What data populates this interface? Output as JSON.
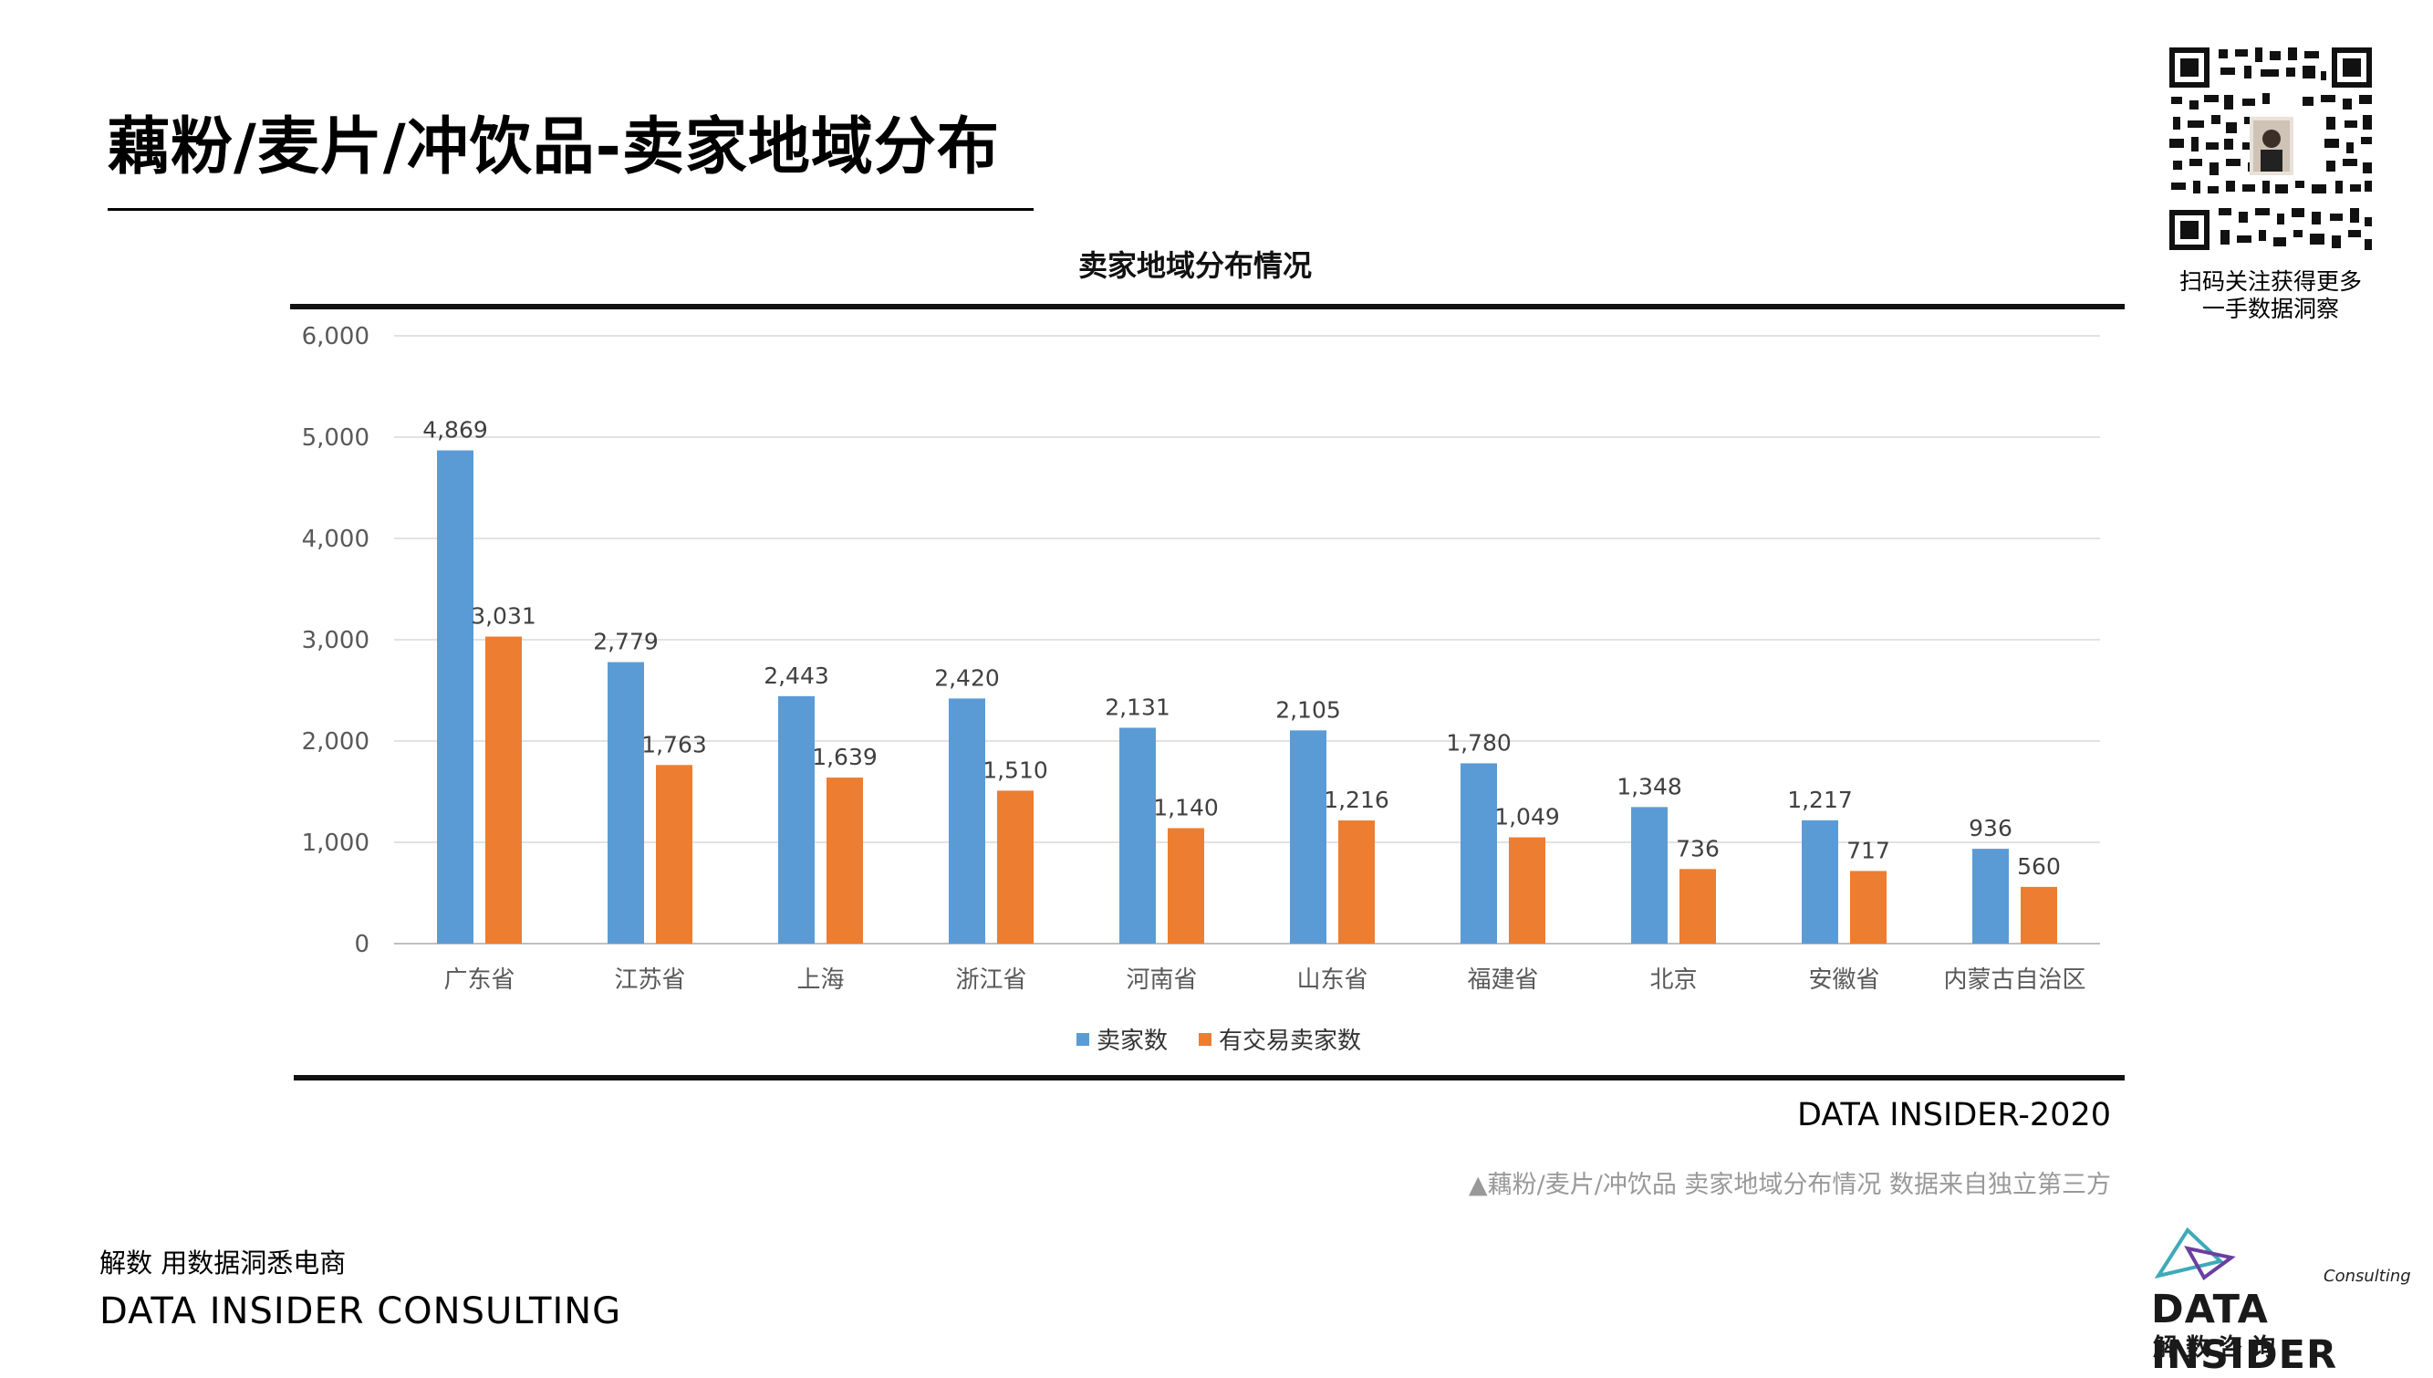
{
  "page": {
    "title": "藕粉/麦片/冲饮品-卖家地域分布",
    "qr_caption_line1": "扫码关注获得更多",
    "qr_caption_line2": "一手数据洞察",
    "source_tag": "DATA INSIDER-2020",
    "note": "▲藕粉/麦片/冲饮品 卖家地域分布情况 数据来自独立第三方",
    "slogan": "解数 用数据洞悉电商",
    "company": "DATA INSIDER CONSULTING",
    "logo_consulting": "Consulting",
    "logo_main": "DATA INSIDER",
    "logo_sub": "解数咨询"
  },
  "colors": {
    "series1": "#5b9bd5",
    "series2": "#ed7d31",
    "grid": "#d9d9d9",
    "axis_text": "#595959",
    "logo_teal": "#3fa9b8",
    "logo_purple": "#6b3fa0"
  },
  "chart_data": {
    "type": "bar",
    "title": "卖家地域分布情况",
    "categories": [
      "广东省",
      "江苏省",
      "上海",
      "浙江省",
      "河南省",
      "山东省",
      "福建省",
      "北京",
      "安徽省",
      "内蒙古自治区"
    ],
    "series": [
      {
        "name": "卖家数",
        "values": [
          4869,
          2779,
          2443,
          2420,
          2131,
          2105,
          1780,
          1348,
          1217,
          936
        ]
      },
      {
        "name": "有交易卖家数",
        "values": [
          3031,
          1763,
          1639,
          1510,
          1140,
          1216,
          1049,
          736,
          717,
          560
        ]
      }
    ],
    "yticks": [
      "0",
      "1,000",
      "2,000",
      "3,000",
      "4,000",
      "5,000",
      "6,000"
    ],
    "ylim": [
      0,
      6000
    ],
    "grid": true,
    "legend": "bottom"
  }
}
